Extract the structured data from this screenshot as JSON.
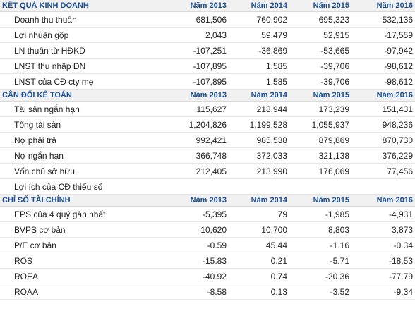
{
  "sections": [
    {
      "title": "KẾT QUẢ KINH DOANH",
      "years": [
        "Năm 2013",
        "Năm 2014",
        "Năm 2015",
        "Năm 2016"
      ],
      "rows": [
        {
          "label": "Doanh thu thuần",
          "values": [
            "681,506",
            "760,902",
            "695,323",
            "532,136"
          ]
        },
        {
          "label": "Lợi nhuận gộp",
          "values": [
            "2,043",
            "59,479",
            "52,915",
            "-17,559"
          ]
        },
        {
          "label": "LN thuần từ HĐKD",
          "values": [
            "-107,251",
            "-36,869",
            "-53,665",
            "-97,942"
          ]
        },
        {
          "label": "LNST thu nhập DN",
          "values": [
            "-107,895",
            "1,585",
            "-39,706",
            "-98,612"
          ]
        },
        {
          "label": "LNST của CĐ cty mẹ",
          "values": [
            "-107,895",
            "1,585",
            "-39,706",
            "-98,612"
          ]
        }
      ]
    },
    {
      "title": "CÂN ĐỐI KẾ TOÁN",
      "years": [
        "Năm 2013",
        "Năm 2014",
        "Năm 2015",
        "Năm 2016"
      ],
      "rows": [
        {
          "label": "Tài sản ngắn hạn",
          "values": [
            "115,627",
            "218,944",
            "173,239",
            "151,431"
          ]
        },
        {
          "label": "Tổng tài sản",
          "values": [
            "1,204,826",
            "1,199,528",
            "1,055,937",
            "948,236"
          ]
        },
        {
          "label": "Nợ phải trả",
          "values": [
            "992,421",
            "985,538",
            "879,869",
            "870,730"
          ]
        },
        {
          "label": "Nợ ngắn hạn",
          "values": [
            "366,748",
            "372,033",
            "321,138",
            "376,229"
          ]
        },
        {
          "label": "Vốn chủ sở hữu",
          "values": [
            "212,405",
            "213,990",
            "176,069",
            "77,456"
          ]
        },
        {
          "label": "Lợi ích của CĐ thiểu số",
          "values": [
            "",
            "",
            "",
            ""
          ]
        }
      ]
    },
    {
      "title": "CHỈ SỐ TÀI CHÍNH",
      "years": [
        "Năm 2013",
        "Năm 2014",
        "Năm 2015",
        "Năm 2016"
      ],
      "rows": [
        {
          "label": "EPS của 4 quý gần nhất",
          "values": [
            "-5,395",
            "79",
            "-1,985",
            "-4,931"
          ]
        },
        {
          "label": "BVPS cơ bản",
          "values": [
            "10,620",
            "10,700",
            "8,803",
            "3,873"
          ]
        },
        {
          "label": "P/E cơ bản",
          "values": [
            "-0.59",
            "45.44",
            "-1.16",
            "-0.34"
          ]
        },
        {
          "label": "ROS",
          "values": [
            "-15.83",
            "0.21",
            "-5.71",
            "-18.53"
          ]
        },
        {
          "label": "ROEA",
          "values": [
            "-40.92",
            "0.74",
            "-20.36",
            "-77.79"
          ]
        },
        {
          "label": "ROAA",
          "values": [
            "-8.58",
            "0.13",
            "-3.52",
            "-9.34"
          ]
        }
      ]
    }
  ]
}
